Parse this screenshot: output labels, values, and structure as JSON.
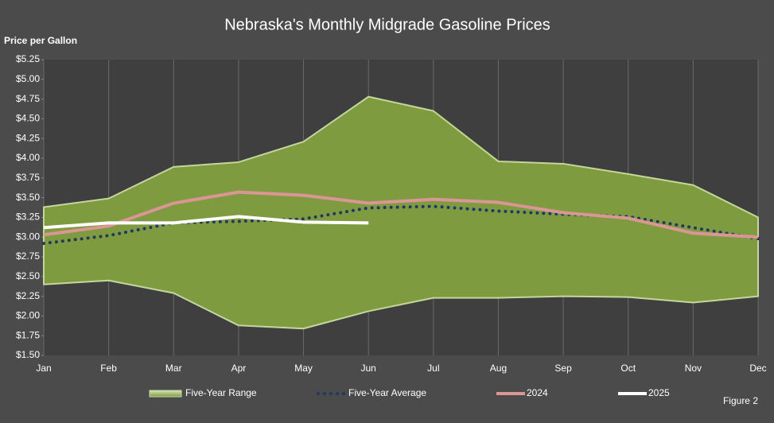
{
  "chart_data": {
    "type": "line",
    "title": "Nebraska's Monthly Midgrade Gasoline Prices",
    "y_label": "Price per Gallon",
    "annotation": "Figure 2",
    "categories": [
      "Jan",
      "Feb",
      "Mar",
      "Apr",
      "May",
      "Jun",
      "Jul",
      "Aug",
      "Sep",
      "Oct",
      "Nov",
      "Dec"
    ],
    "ylim": [
      1.5,
      5.25
    ],
    "yticks": [
      {
        "value": 1.5,
        "label": "$1.50"
      },
      {
        "value": 1.75,
        "label": "$1.75"
      },
      {
        "value": 2.0,
        "label": "$2.00"
      },
      {
        "value": 2.25,
        "label": "$2.25"
      },
      {
        "value": 2.5,
        "label": "$2.50"
      },
      {
        "value": 2.75,
        "label": "$2.75"
      },
      {
        "value": 3.0,
        "label": "$3.00"
      },
      {
        "value": 3.25,
        "label": "$3.25"
      },
      {
        "value": 3.5,
        "label": "$3.50"
      },
      {
        "value": 3.75,
        "label": "$3.75"
      },
      {
        "value": 4.0,
        "label": "$4.00"
      },
      {
        "value": 4.25,
        "label": "$4.25"
      },
      {
        "value": 4.5,
        "label": "$4.50"
      },
      {
        "value": 4.75,
        "label": "$4.75"
      },
      {
        "value": 5.0,
        "label": "$5.00"
      },
      {
        "value": 5.25,
        "label": "$5.25"
      }
    ],
    "range": {
      "name": "Five-Year Range",
      "color": "#7f9b3f",
      "high": [
        3.38,
        3.49,
        3.89,
        3.95,
        4.21,
        4.78,
        4.6,
        3.96,
        3.93,
        3.8,
        3.66,
        3.25
      ],
      "low": [
        2.4,
        2.45,
        2.29,
        1.88,
        1.84,
        2.06,
        2.23,
        2.23,
        2.25,
        2.24,
        2.17,
        2.25
      ]
    },
    "series": [
      {
        "name": "Five-Year Average",
        "color": "#1f3864",
        "style": "dotted",
        "values": [
          2.92,
          3.02,
          3.18,
          3.2,
          3.23,
          3.37,
          3.39,
          3.33,
          3.29,
          3.26,
          3.12,
          2.98
        ]
      },
      {
        "name": "2024",
        "color": "#d99694",
        "style": "solid",
        "values": [
          3.03,
          3.14,
          3.43,
          3.57,
          3.53,
          3.43,
          3.48,
          3.44,
          3.31,
          3.24,
          3.05,
          3.0
        ]
      },
      {
        "name": "2025",
        "color": "#ffffff",
        "style": "solid",
        "values": [
          3.12,
          3.18,
          3.18,
          3.26,
          3.19,
          3.18,
          null,
          null,
          null,
          null,
          null,
          null
        ]
      }
    ]
  }
}
